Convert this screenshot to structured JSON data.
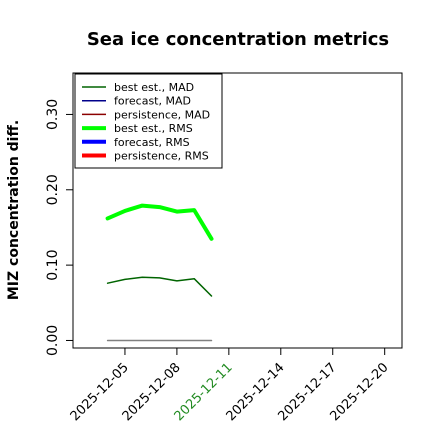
{
  "chart_data": {
    "type": "line",
    "title": "Sea ice concentration metrics",
    "xlabel": "",
    "ylabel": "MIZ concentration diff.",
    "ylim": [
      -0.01,
      0.355
    ],
    "xlim": [
      "2025-12-02",
      "2025-12-21"
    ],
    "yticks": [
      0.0,
      0.1,
      0.2,
      0.3
    ],
    "ytick_labels": [
      "0.00",
      "0.10",
      "0.20",
      "0.30"
    ],
    "xticks": [
      "2025-12-05",
      "2025-12-08",
      "2025-12-11",
      "2025-12-14",
      "2025-12-17",
      "2025-12-20"
    ],
    "xtick_labels": [
      "2025-12-05",
      "2025-12-08",
      "2025-12-11",
      "2025-12-14",
      "2025-12-17",
      "2025-12-20"
    ],
    "xtick_colors": [
      "#000000",
      "#000000",
      "#228B22",
      "#000000",
      "#000000",
      "#000000"
    ],
    "grid": false,
    "legend_position": "top-left",
    "series": [
      {
        "name": "best est., MAD",
        "color": "#006400",
        "width": "thin",
        "x": [
          "2025-12-04",
          "2025-12-05",
          "2025-12-06",
          "2025-12-07",
          "2025-12-08",
          "2025-12-09",
          "2025-12-10"
        ],
        "values": [
          0.076,
          0.081,
          0.084,
          0.083,
          0.079,
          0.082,
          0.059
        ]
      },
      {
        "name": "forecast,  MAD",
        "color": "#00008B",
        "width": "thin",
        "x": [],
        "values": []
      },
      {
        "name": "persistence, MAD",
        "color": "#8B0000",
        "width": "thin",
        "x": [],
        "values": []
      },
      {
        "name": "best est., RMS",
        "color": "#00FF00",
        "width": "thick",
        "x": [
          "2025-12-04",
          "2025-12-05",
          "2025-12-06",
          "2025-12-07",
          "2025-12-08",
          "2025-12-09",
          "2025-12-10"
        ],
        "values": [
          0.162,
          0.172,
          0.179,
          0.177,
          0.171,
          0.173,
          0.135
        ]
      },
      {
        "name": "forecast,  RMS",
        "color": "#0000FF",
        "width": "thick",
        "x": [],
        "values": []
      },
      {
        "name": "persistence, RMS",
        "color": "#FF0000",
        "width": "thick",
        "x": [],
        "values": []
      },
      {
        "color": "#808080",
        "width": "thin",
        "x": [
          "2025-12-04",
          "2025-12-10"
        ],
        "values": [
          0.0,
          0.0
        ]
      }
    ]
  }
}
